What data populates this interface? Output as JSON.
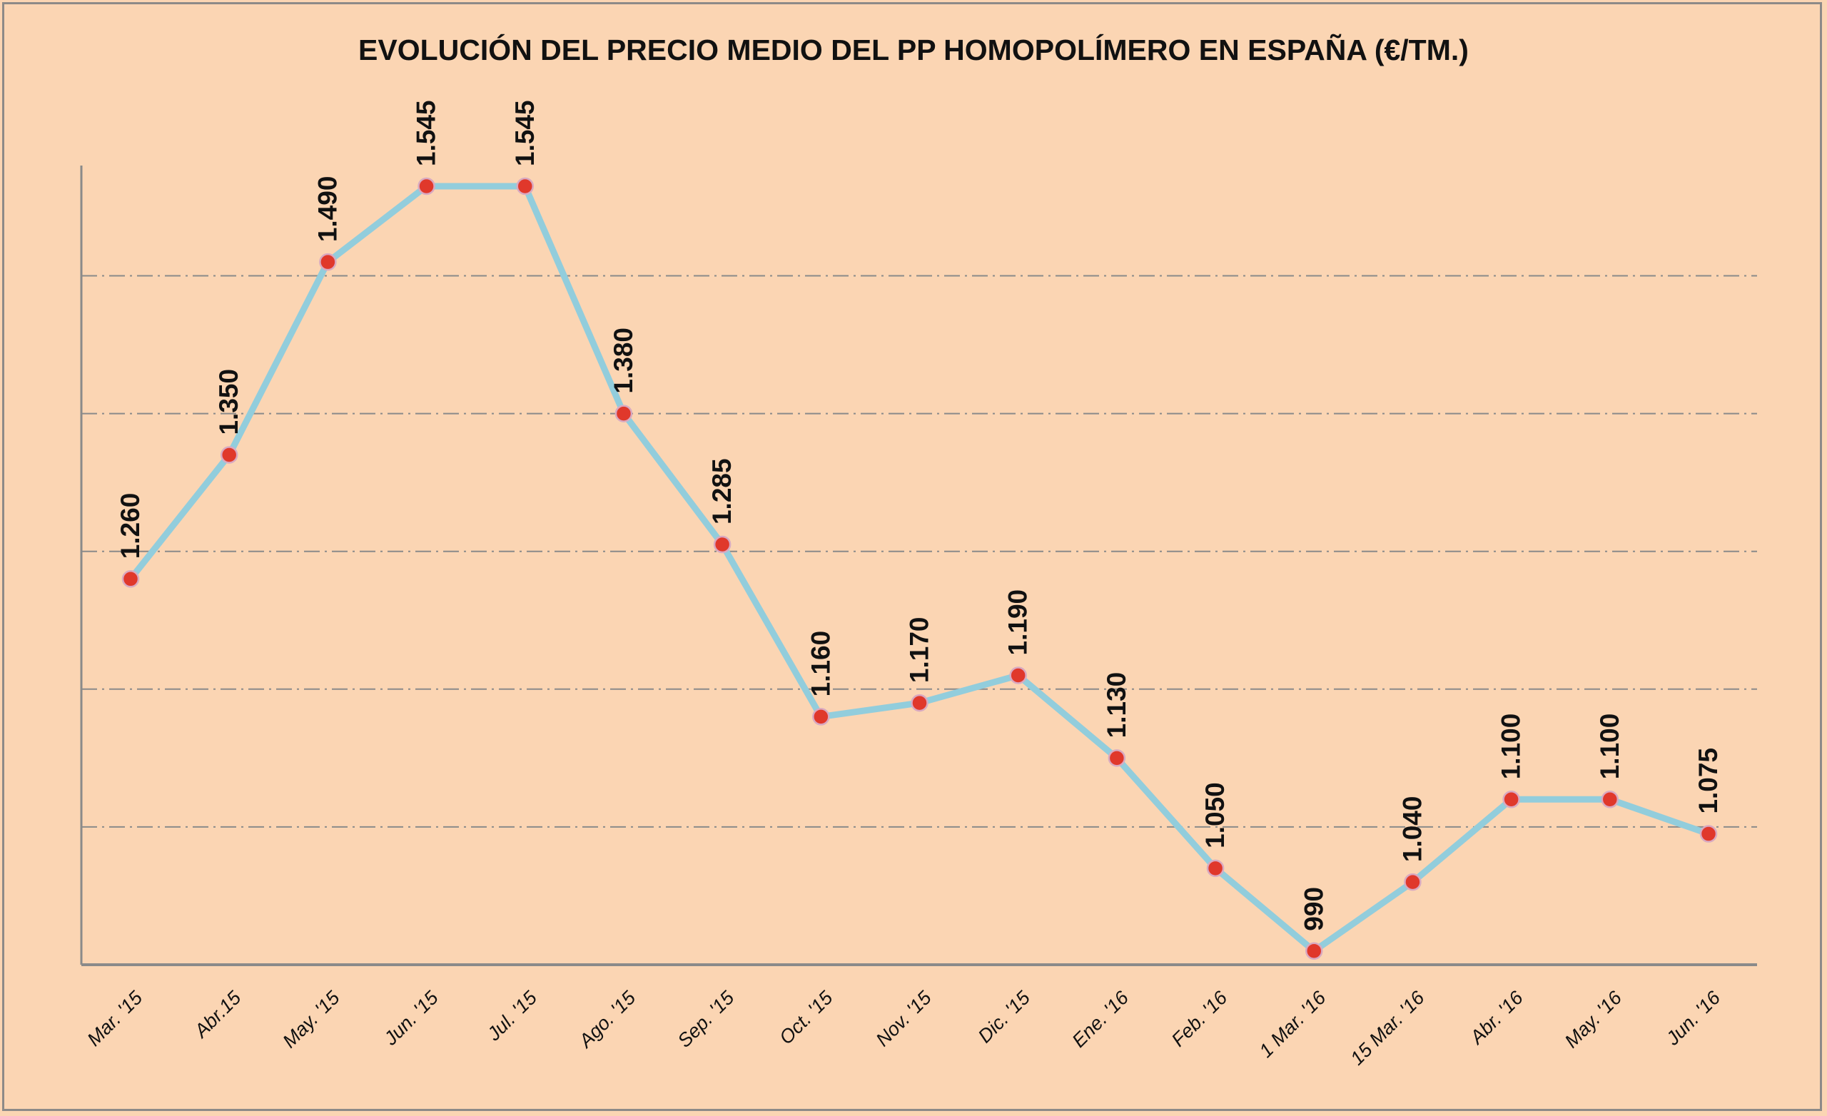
{
  "chart_data": {
    "type": "line",
    "title": "EVOLUCIÓN DEL PRECIO MEDIO DEL PP HOMOPOLÍMERO EN ESPAÑA (€/TM.)",
    "xlabel": "",
    "ylabel": "",
    "categories": [
      "Mar. '15",
      "Abr.15",
      "May. '15",
      "Jun. '15",
      "Jul. '15",
      "Ago. '15",
      "Sep. '15",
      "Oct. '15",
      "Nov. '15",
      "Dic. '15",
      "Ene. '16",
      "Feb. '16",
      "1 Mar. '16",
      "15 Mar. '16",
      "Abr. '16",
      "May. '16",
      "Jun. '16"
    ],
    "values": [
      1260,
      1350,
      1490,
      1545,
      1545,
      1380,
      1285,
      1160,
      1170,
      1190,
      1130,
      1050,
      990,
      1040,
      1100,
      1100,
      1075
    ],
    "data_labels": [
      "1.260",
      "1.350",
      "1.490",
      "1.545",
      "1.545",
      "1.380",
      "1.285",
      "1.160",
      "1.170",
      "1.190",
      "1.130",
      "1.050",
      "990",
      "1.040",
      "1.100",
      "1.100",
      "1.075"
    ],
    "ylim": [
      980,
      1560
    ],
    "gridlines": [
      1080,
      1180,
      1280,
      1380,
      1480
    ],
    "grid": true,
    "y_tick_labels_shown": false,
    "legend": "none",
    "colors": {
      "background": "#fbd5b3",
      "line": "#92cddc",
      "marker": "#e0382b",
      "grid": "#8a8a8a"
    }
  }
}
